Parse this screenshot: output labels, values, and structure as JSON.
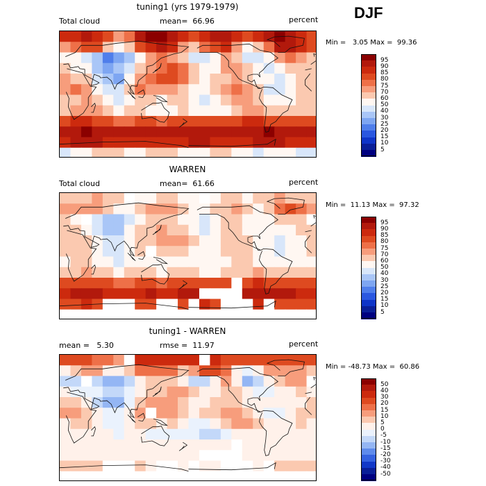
{
  "season": "DJF",
  "panels": [
    {
      "title": "tuning1 (yrs 1979-1979)",
      "left_label": "Total cloud",
      "mid_label": "mean=  66.96",
      "units": "percent",
      "minmax": "Min =   3.05 Max =  99.36",
      "palette": "abs"
    },
    {
      "title": "WARREN",
      "left_label": "Total cloud",
      "mid_label": "mean=  61.66",
      "units": "percent",
      "minmax": "Min =  11.13 Max =  97.32",
      "palette": "abs"
    },
    {
      "title": "tuning1 - WARREN",
      "left_label": "mean =   5.30",
      "mid_label": "rmse =  11.97",
      "units": "percent",
      "minmax": "Min = -48.73 Max =  60.86",
      "palette": "diff"
    }
  ],
  "colorbars": {
    "abs": {
      "labels": [
        "95",
        "90",
        "85",
        "80",
        "75",
        "70",
        "60",
        "50",
        "40",
        "30",
        "25",
        "20",
        "15",
        "10",
        "5"
      ],
      "colors": [
        "#8b0000",
        "#b2190c",
        "#cc2a0e",
        "#de4a20",
        "#ee7048",
        "#f79d7c",
        "#fbc9b0",
        "#fff7f2",
        "#d8e6fa",
        "#a9c6f7",
        "#7ea6f2",
        "#4f7eeb",
        "#2a57e0",
        "#0f35c8",
        "#0a1f98",
        "#000080"
      ]
    },
    "diff": {
      "labels": [
        "50",
        "40",
        "30",
        "20",
        "15",
        "10",
        "5",
        "0",
        "-5",
        "-10",
        "-15",
        "-20",
        "-30",
        "-40",
        "-50"
      ],
      "colors": [
        "#8b0000",
        "#b2190c",
        "#cc2a0e",
        "#de4a20",
        "#ee7048",
        "#f79d7c",
        "#fbc9b0",
        "#fff1ea",
        "#eaf2fd",
        "#c3d8f9",
        "#94b6f4",
        "#5f8bec",
        "#3562e0",
        "#1238c8",
        "#0a1f98",
        "#000080"
      ]
    }
  },
  "chart_data": [
    {
      "type": "heatmap",
      "title": "tuning1 (yrs 1979-1979)",
      "variable": "Total cloud",
      "units": "percent",
      "mean": 66.96,
      "min": 3.05,
      "max": 99.36,
      "levels": [
        5,
        10,
        15,
        20,
        25,
        30,
        40,
        50,
        60,
        70,
        75,
        80,
        85,
        90,
        95
      ],
      "grid": {
        "lon_range": [
          0,
          360
        ],
        "lat_range": [
          -90,
          90
        ],
        "rows_north_to_south": [
          [
            85,
            88,
            90,
            88,
            80,
            72,
            78,
            90,
            95,
            96,
            92,
            85,
            80,
            88,
            92,
            90,
            85,
            80,
            88,
            92,
            95,
            90,
            85,
            80
          ],
          [
            72,
            78,
            82,
            80,
            60,
            55,
            62,
            80,
            88,
            90,
            86,
            70,
            65,
            75,
            82,
            86,
            70,
            55,
            60,
            78,
            90,
            92,
            88,
            80
          ],
          [
            55,
            52,
            45,
            30,
            20,
            25,
            35,
            55,
            70,
            75,
            72,
            60,
            45,
            40,
            55,
            72,
            68,
            45,
            40,
            55,
            70,
            75,
            72,
            65
          ],
          [
            62,
            58,
            50,
            35,
            25,
            30,
            45,
            62,
            72,
            78,
            80,
            75,
            60,
            50,
            55,
            70,
            72,
            60,
            50,
            48,
            55,
            60,
            65,
            62
          ],
          [
            70,
            68,
            60,
            45,
            30,
            28,
            55,
            72,
            78,
            80,
            82,
            78,
            62,
            55,
            60,
            68,
            72,
            62,
            55,
            50,
            48,
            55,
            62,
            68
          ],
          [
            72,
            75,
            72,
            55,
            45,
            40,
            62,
            75,
            72,
            70,
            72,
            68,
            55,
            58,
            65,
            70,
            75,
            70,
            60,
            48,
            45,
            50,
            60,
            68
          ],
          [
            60,
            65,
            70,
            60,
            50,
            45,
            52,
            65,
            60,
            55,
            60,
            62,
            50,
            48,
            55,
            62,
            70,
            72,
            65,
            55,
            50,
            55,
            60,
            62
          ],
          [
            65,
            70,
            72,
            70,
            62,
            55,
            60,
            62,
            58,
            55,
            58,
            60,
            55,
            50,
            52,
            58,
            62,
            70,
            72,
            68,
            62,
            60,
            62,
            65
          ],
          [
            82,
            85,
            86,
            84,
            80,
            78,
            78,
            80,
            80,
            78,
            80,
            82,
            82,
            80,
            80,
            82,
            84,
            86,
            86,
            84,
            82,
            82,
            82,
            82
          ],
          [
            92,
            94,
            95,
            94,
            92,
            92,
            92,
            92,
            93,
            92,
            92,
            93,
            94,
            94,
            93,
            92,
            92,
            93,
            94,
            95,
            94,
            93,
            92,
            92
          ],
          [
            88,
            90,
            92,
            90,
            88,
            86,
            86,
            88,
            88,
            86,
            86,
            88,
            90,
            90,
            88,
            88,
            86,
            88,
            90,
            92,
            90,
            88,
            88,
            88
          ],
          [
            45,
            50,
            55,
            60,
            62,
            60,
            55,
            55,
            60,
            62,
            60,
            58,
            55,
            55,
            60,
            62,
            55,
            50,
            48,
            52,
            55,
            52,
            48,
            45
          ]
        ]
      }
    },
    {
      "type": "heatmap",
      "title": "WARREN",
      "variable": "Total cloud",
      "units": "percent",
      "mean": 61.66,
      "min": 11.13,
      "max": 97.32,
      "levels": [
        5,
        10,
        15,
        20,
        25,
        30,
        40,
        50,
        60,
        70,
        75,
        80,
        85,
        90,
        95
      ],
      "grid": {
        "lon_range": [
          0,
          360
        ],
        "lat_range": [
          -90,
          90
        ],
        "rows_north_to_south": [
          [
            60,
            62,
            65,
            70,
            65,
            60,
            null,
            55,
            58,
            60,
            62,
            55,
            50,
            null,
            58,
            62,
            60,
            55,
            60,
            65,
            70,
            68,
            62,
            60
          ],
          [
            72,
            70,
            72,
            70,
            60,
            52,
            55,
            62,
            70,
            72,
            70,
            62,
            55,
            55,
            62,
            68,
            70,
            60,
            58,
            65,
            78,
            80,
            75,
            72
          ],
          [
            62,
            58,
            null,
            40,
            35,
            38,
            45,
            55,
            62,
            68,
            65,
            58,
            52,
            48,
            55,
            62,
            65,
            58,
            50,
            55,
            62,
            65,
            60,
            null
          ],
          [
            62,
            60,
            55,
            40,
            35,
            38,
            50,
            60,
            65,
            70,
            68,
            62,
            52,
            48,
            52,
            62,
            65,
            58,
            52,
            50,
            55,
            58,
            60,
            60
          ],
          [
            65,
            62,
            60,
            52,
            45,
            40,
            58,
            65,
            68,
            70,
            72,
            70,
            60,
            52,
            55,
            62,
            65,
            60,
            55,
            50,
            48,
            52,
            58,
            62
          ],
          [
            62,
            65,
            65,
            55,
            48,
            45,
            58,
            62,
            null,
            60,
            62,
            62,
            55,
            52,
            58,
            60,
            65,
            62,
            58,
            50,
            48,
            50,
            55,
            60
          ],
          [
            58,
            60,
            62,
            58,
            52,
            48,
            52,
            58,
            55,
            52,
            55,
            58,
            52,
            50,
            52,
            55,
            60,
            62,
            58,
            55,
            50,
            52,
            55,
            58
          ],
          [
            65,
            68,
            70,
            68,
            62,
            58,
            60,
            62,
            60,
            58,
            60,
            62,
            60,
            58,
            58,
            60,
            62,
            68,
            70,
            66,
            62,
            60,
            62,
            64
          ],
          [
            80,
            82,
            84,
            82,
            80,
            78,
            78,
            80,
            80,
            78,
            80,
            82,
            82,
            80,
            80,
            82,
            null,
            84,
            86,
            84,
            82,
            82,
            82,
            80
          ],
          [
            88,
            90,
            92,
            90,
            88,
            88,
            88,
            88,
            90,
            88,
            88,
            90,
            90,
            null,
            null,
            null,
            null,
            90,
            92,
            92,
            90,
            90,
            88,
            88
          ],
          [
            82,
            84,
            86,
            84,
            null,
            null,
            null,
            82,
            84,
            null,
            null,
            84,
            null,
            86,
            84,
            null,
            null,
            null,
            86,
            null,
            84,
            82,
            82,
            82
          ],
          [
            null,
            null,
            null,
            null,
            null,
            null,
            null,
            null,
            null,
            null,
            null,
            null,
            null,
            null,
            null,
            null,
            null,
            null,
            null,
            null,
            null,
            null,
            null,
            null
          ]
        ]
      }
    },
    {
      "type": "heatmap",
      "title": "tuning1 - WARREN",
      "units": "percent",
      "mean": 5.3,
      "rmse": 11.97,
      "min": -48.73,
      "max": 60.86,
      "levels": [
        -50,
        -40,
        -30,
        -20,
        -15,
        -10,
        -5,
        0,
        5,
        10,
        15,
        20,
        30,
        40,
        50
      ],
      "grid": {
        "lon_range": [
          0,
          360
        ],
        "lat_range": [
          -90,
          90
        ],
        "rows_north_to_south": [
          [
            25,
            26,
            25,
            18,
            15,
            12,
            null,
            35,
            37,
            36,
            30,
            30,
            30,
            null,
            34,
            28,
            25,
            25,
            28,
            27,
            25,
            22,
            23,
            20
          ],
          [
            0,
            8,
            10,
            10,
            0,
            3,
            7,
            18,
            18,
            18,
            16,
            8,
            10,
            20,
            20,
            18,
            0,
            -5,
            2,
            13,
            12,
            12,
            13,
            8
          ],
          [
            -7,
            -6,
            null,
            -10,
            -15,
            -13,
            -10,
            0,
            8,
            7,
            7,
            2,
            -7,
            -8,
            0,
            10,
            3,
            -13,
            -10,
            0,
            8,
            10,
            12,
            null
          ],
          [
            0,
            -2,
            -5,
            -5,
            -10,
            -8,
            -5,
            2,
            7,
            8,
            12,
            13,
            8,
            2,
            3,
            8,
            7,
            2,
            -2,
            -2,
            0,
            2,
            5,
            2
          ],
          [
            5,
            6,
            0,
            -7,
            -15,
            -12,
            -3,
            7,
            10,
            10,
            10,
            8,
            2,
            3,
            5,
            6,
            7,
            2,
            0,
            0,
            0,
            3,
            4,
            6
          ],
          [
            10,
            10,
            7,
            0,
            -3,
            -5,
            4,
            13,
            null,
            10,
            10,
            6,
            0,
            6,
            7,
            10,
            10,
            8,
            2,
            -2,
            -3,
            0,
            5,
            8
          ],
          [
            2,
            5,
            8,
            2,
            -2,
            -3,
            0,
            7,
            5,
            3,
            5,
            4,
            -2,
            -2,
            3,
            7,
            10,
            10,
            7,
            0,
            0,
            3,
            5,
            4
          ],
          [
            0,
            2,
            2,
            2,
            0,
            -3,
            0,
            0,
            -2,
            -3,
            -2,
            -2,
            -5,
            -8,
            -6,
            -2,
            0,
            2,
            2,
            2,
            0,
            0,
            0,
            1
          ],
          [
            2,
            3,
            2,
            2,
            0,
            0,
            0,
            0,
            0,
            0,
            0,
            0,
            0,
            0,
            0,
            0,
            null,
            2,
            0,
            0,
            0,
            0,
            0,
            2
          ],
          [
            4,
            4,
            3,
            4,
            4,
            4,
            4,
            4,
            3,
            4,
            4,
            3,
            4,
            null,
            null,
            null,
            null,
            3,
            2,
            3,
            4,
            3,
            4,
            4
          ],
          [
            6,
            6,
            6,
            6,
            null,
            null,
            null,
            6,
            4,
            null,
            null,
            4,
            null,
            4,
            4,
            null,
            null,
            null,
            4,
            null,
            6,
            6,
            6,
            6
          ],
          [
            null,
            null,
            null,
            null,
            null,
            null,
            null,
            null,
            null,
            null,
            null,
            null,
            null,
            null,
            null,
            null,
            null,
            null,
            null,
            null,
            null,
            null,
            null,
            null
          ]
        ]
      }
    }
  ]
}
